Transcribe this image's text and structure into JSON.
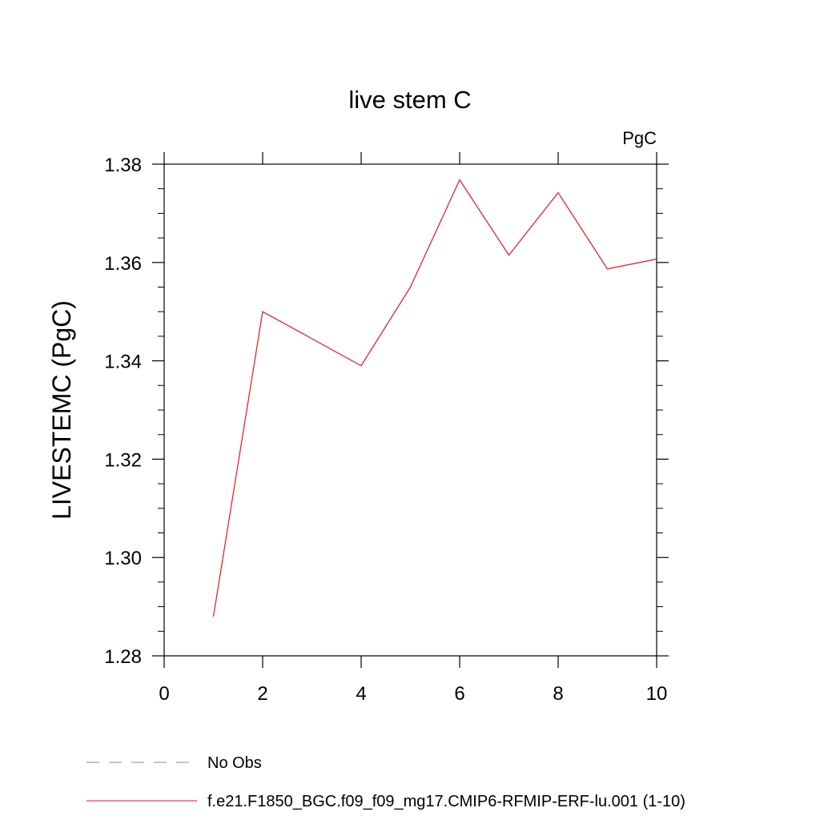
{
  "chart_data": {
    "type": "line",
    "title": "live stem C",
    "units_label": "PgC",
    "ylabel": "LIVESTEMC  (PgC)",
    "xlabel": "",
    "xlim": [
      0,
      10
    ],
    "ylim": [
      1.28,
      1.38
    ],
    "x_ticks": [
      0,
      2,
      4,
      6,
      8,
      10
    ],
    "x_tick_labels": [
      "0",
      "2",
      "4",
      "6",
      "8",
      "10"
    ],
    "y_ticks": [
      1.28,
      1.3,
      1.32,
      1.34,
      1.36,
      1.38
    ],
    "y_tick_labels": [
      "1.28",
      "1.30",
      "1.32",
      "1.34",
      "1.36",
      "1.38"
    ],
    "grid": false,
    "legend_position": "bottom",
    "series": [
      {
        "name": "f.e21.F1850_BGC.f09_f09_mg17.CMIP6-RFMIP-ERF-lu.001 (1-10)",
        "color": "#e8131b",
        "style": "solid",
        "x": [
          1,
          2,
          3,
          4,
          5,
          6,
          7,
          8,
          9,
          10
        ],
        "y": [
          1.288,
          1.35,
          1.3445,
          1.339,
          1.355,
          1.3768,
          1.3615,
          1.3742,
          1.3587,
          1.3607
        ]
      }
    ],
    "legend": [
      {
        "label": "No Obs",
        "color": "#8c7fc8",
        "style": "dashed"
      },
      {
        "label": "f.e21.F1850_BGC.f09_f09_mg17.CMIP6-RFMIP-ERF-lu.001 (1-10)",
        "color": "#e8131b",
        "style": "solid"
      }
    ]
  }
}
